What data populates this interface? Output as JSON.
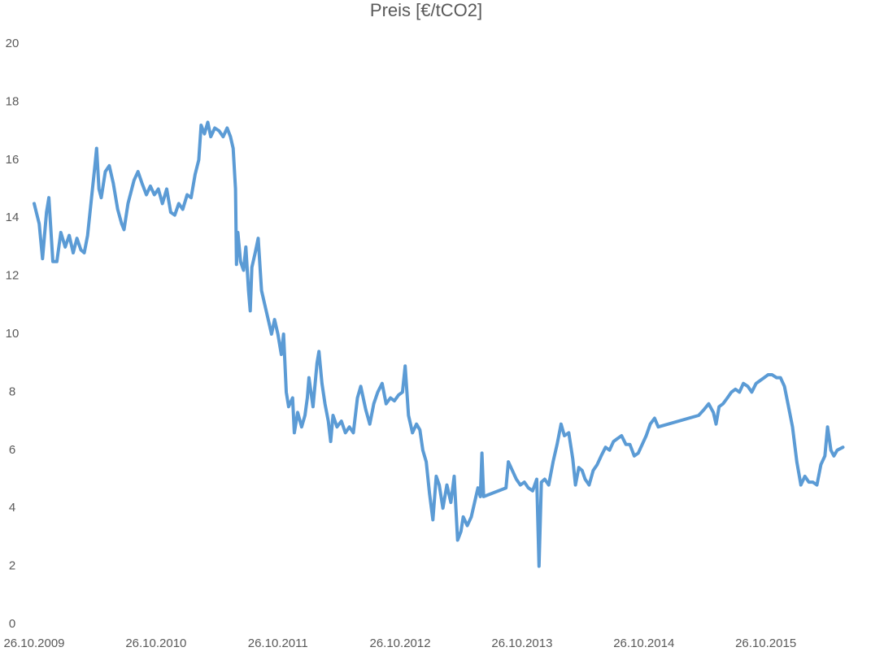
{
  "chart_data": {
    "type": "line",
    "title": "Preis [€/tCO2]",
    "color": "#5b9bd5",
    "grid": false,
    "x": [
      "2009-10-26",
      "2009-11-10",
      "2009-11-20",
      "2009-12-02",
      "2009-12-09",
      "2009-12-21",
      "2010-01-02",
      "2010-01-14",
      "2010-01-27",
      "2010-02-08",
      "2010-02-20",
      "2010-03-03",
      "2010-03-15",
      "2010-03-25",
      "2010-04-04",
      "2010-04-14",
      "2010-04-26",
      "2010-05-01",
      "2010-05-08",
      "2010-05-15",
      "2010-05-27",
      "2010-06-08",
      "2010-06-20",
      "2010-07-03",
      "2010-07-15",
      "2010-07-22",
      "2010-08-03",
      "2010-08-21",
      "2010-09-02",
      "2010-09-14",
      "2010-09-27",
      "2010-10-09",
      "2010-10-21",
      "2010-11-02",
      "2010-11-14",
      "2010-11-27",
      "2010-12-09",
      "2010-12-21",
      "2011-01-02",
      "2011-01-14",
      "2011-01-27",
      "2011-02-08",
      "2011-02-20",
      "2011-03-03",
      "2011-03-10",
      "2011-03-20",
      "2011-03-30",
      "2011-04-08",
      "2011-04-20",
      "2011-05-03",
      "2011-05-15",
      "2011-05-27",
      "2011-06-06",
      "2011-06-14",
      "2011-06-21",
      "2011-06-24",
      "2011-06-28",
      "2011-07-06",
      "2011-07-15",
      "2011-07-22",
      "2011-07-30",
      "2011-08-04",
      "2011-08-09",
      "2011-08-19",
      "2011-08-28",
      "2011-09-07",
      "2011-09-17",
      "2011-09-27",
      "2011-10-07",
      "2011-10-16",
      "2011-10-26",
      "2011-11-05",
      "2011-11-12",
      "2011-11-20",
      "2011-11-27",
      "2011-12-09",
      "2011-12-14",
      "2011-12-24",
      "2012-01-05",
      "2012-01-15",
      "2012-01-22",
      "2012-01-27",
      "2012-02-08",
      "2012-02-20",
      "2012-02-26",
      "2012-03-06",
      "2012-03-15",
      "2012-03-25",
      "2012-04-01",
      "2012-04-08",
      "2012-04-20",
      "2012-05-03",
      "2012-05-15",
      "2012-05-27",
      "2012-06-08",
      "2012-06-20",
      "2012-06-30",
      "2012-07-15",
      "2012-07-27",
      "2012-08-08",
      "2012-08-20",
      "2012-09-02",
      "2012-09-14",
      "2012-09-27",
      "2012-10-09",
      "2012-10-21",
      "2012-11-02",
      "2012-11-10",
      "2012-11-20",
      "2012-12-02",
      "2012-12-14",
      "2012-12-24",
      "2013-01-02",
      "2013-01-12",
      "2013-01-22",
      "2013-02-01",
      "2013-02-11",
      "2013-02-20",
      "2013-03-03",
      "2013-03-15",
      "2013-03-27",
      "2013-04-06",
      "2013-04-16",
      "2013-04-26",
      "2013-05-03",
      "2013-05-15",
      "2013-05-27",
      "2013-06-08",
      "2013-06-16",
      "2013-06-23",
      "2013-06-28",
      "2013-07-03",
      "2013-09-08",
      "2013-09-15",
      "2013-09-27",
      "2013-10-09",
      "2013-10-21",
      "2013-11-02",
      "2013-11-14",
      "2013-11-27",
      "2013-12-09",
      "2013-12-16",
      "2013-12-23",
      "2014-01-02",
      "2014-01-14",
      "2014-01-27",
      "2014-02-08",
      "2014-02-20",
      "2014-03-02",
      "2014-03-15",
      "2014-03-27",
      "2014-04-04",
      "2014-04-14",
      "2014-04-24",
      "2014-05-03",
      "2014-05-15",
      "2014-05-27",
      "2014-06-08",
      "2014-06-20",
      "2014-07-03",
      "2014-07-15",
      "2014-07-27",
      "2014-08-08",
      "2014-08-20",
      "2014-09-02",
      "2014-09-14",
      "2014-09-27",
      "2014-10-09",
      "2014-10-21",
      "2014-11-02",
      "2014-11-14",
      "2014-11-27",
      "2014-12-08",
      "2015-04-08",
      "2015-04-24",
      "2015-05-08",
      "2015-05-22",
      "2015-05-30",
      "2015-06-08",
      "2015-06-20",
      "2015-07-03",
      "2015-07-15",
      "2015-07-27",
      "2015-08-08",
      "2015-08-20",
      "2015-09-02",
      "2015-09-14",
      "2015-09-27",
      "2015-10-09",
      "2015-10-21",
      "2015-11-02",
      "2015-11-14",
      "2015-11-27",
      "2015-12-09",
      "2015-12-21",
      "2016-01-02",
      "2016-01-14",
      "2016-01-27",
      "2016-02-08",
      "2016-02-20",
      "2016-03-03",
      "2016-03-15",
      "2016-03-27",
      "2016-04-08",
      "2016-04-20",
      "2016-04-28",
      "2016-05-08",
      "2016-05-17",
      "2016-05-27",
      "2016-06-13"
    ],
    "values": [
      14.5,
      13.8,
      12.6,
      14.2,
      14.7,
      12.5,
      12.5,
      13.5,
      13.0,
      13.4,
      12.8,
      13.3,
      12.9,
      12.8,
      13.4,
      14.5,
      15.8,
      16.4,
      15.0,
      14.7,
      15.6,
      15.8,
      15.2,
      14.3,
      13.8,
      13.6,
      14.5,
      15.3,
      15.6,
      15.2,
      14.8,
      15.1,
      14.8,
      15.0,
      14.5,
      15.0,
      14.2,
      14.1,
      14.5,
      14.3,
      14.8,
      14.7,
      15.5,
      16.0,
      17.2,
      16.9,
      17.3,
      16.8,
      17.1,
      17.0,
      16.8,
      17.1,
      16.8,
      16.4,
      15.0,
      12.4,
      13.5,
      12.5,
      12.2,
      13.0,
      11.5,
      10.8,
      12.3,
      12.8,
      13.3,
      11.5,
      11.0,
      10.5,
      10.0,
      10.5,
      10.0,
      9.3,
      10.0,
      8.0,
      7.5,
      7.8,
      6.6,
      7.3,
      6.8,
      7.2,
      7.8,
      8.5,
      7.5,
      9.0,
      9.4,
      8.3,
      7.6,
      7.0,
      6.3,
      7.2,
      6.8,
      7.0,
      6.6,
      6.8,
      6.6,
      7.8,
      8.2,
      7.4,
      6.9,
      7.6,
      8.0,
      8.3,
      7.6,
      7.8,
      7.7,
      7.9,
      8.0,
      8.9,
      7.2,
      6.6,
      6.9,
      6.7,
      6.0,
      5.6,
      4.5,
      3.6,
      5.1,
      4.8,
      4.0,
      4.8,
      4.2,
      5.1,
      2.9,
      3.2,
      3.7,
      3.4,
      3.7,
      4.3,
      4.7,
      4.4,
      5.9,
      4.4,
      4.7,
      5.6,
      5.3,
      5.0,
      4.8,
      4.9,
      4.7,
      4.6,
      5.0,
      2.0,
      4.9,
      5.0,
      4.8,
      5.6,
      6.2,
      6.9,
      6.5,
      6.6,
      5.7,
      4.8,
      5.4,
      5.3,
      5.0,
      4.8,
      5.3,
      5.5,
      5.8,
      6.1,
      6.0,
      6.3,
      6.4,
      6.5,
      6.2,
      6.2,
      5.8,
      5.9,
      6.2,
      6.5,
      6.9,
      7.1,
      6.8,
      7.2,
      7.4,
      7.6,
      7.3,
      6.9,
      7.5,
      7.6,
      7.8,
      8.0,
      8.1,
      8.0,
      8.3,
      8.2,
      8.0,
      8.3,
      8.4,
      8.5,
      8.6,
      8.6,
      8.5,
      8.5,
      8.2,
      7.5,
      6.8,
      5.6,
      4.8,
      5.1,
      4.9,
      4.9,
      4.8,
      5.5,
      5.8,
      6.8,
      6.0,
      5.8,
      6.0,
      6.1
    ],
    "xlim": [
      "2009-10-26",
      "2016-10-14"
    ],
    "xticks": [
      {
        "value": "2009-10-26",
        "label": "26.10.2009"
      },
      {
        "value": "2010-10-26",
        "label": "26.10.2010"
      },
      {
        "value": "2011-10-26",
        "label": "26.10.2011"
      },
      {
        "value": "2012-10-26",
        "label": "26.10.2012"
      },
      {
        "value": "2013-10-26",
        "label": "26.10.2013"
      },
      {
        "value": "2014-10-26",
        "label": "26.10.2014"
      },
      {
        "value": "2015-10-26",
        "label": "26.10.2015"
      }
    ],
    "ylim": [
      0,
      20
    ],
    "yticks": [
      0,
      2,
      4,
      6,
      8,
      10,
      12,
      14,
      16,
      18,
      20
    ]
  }
}
